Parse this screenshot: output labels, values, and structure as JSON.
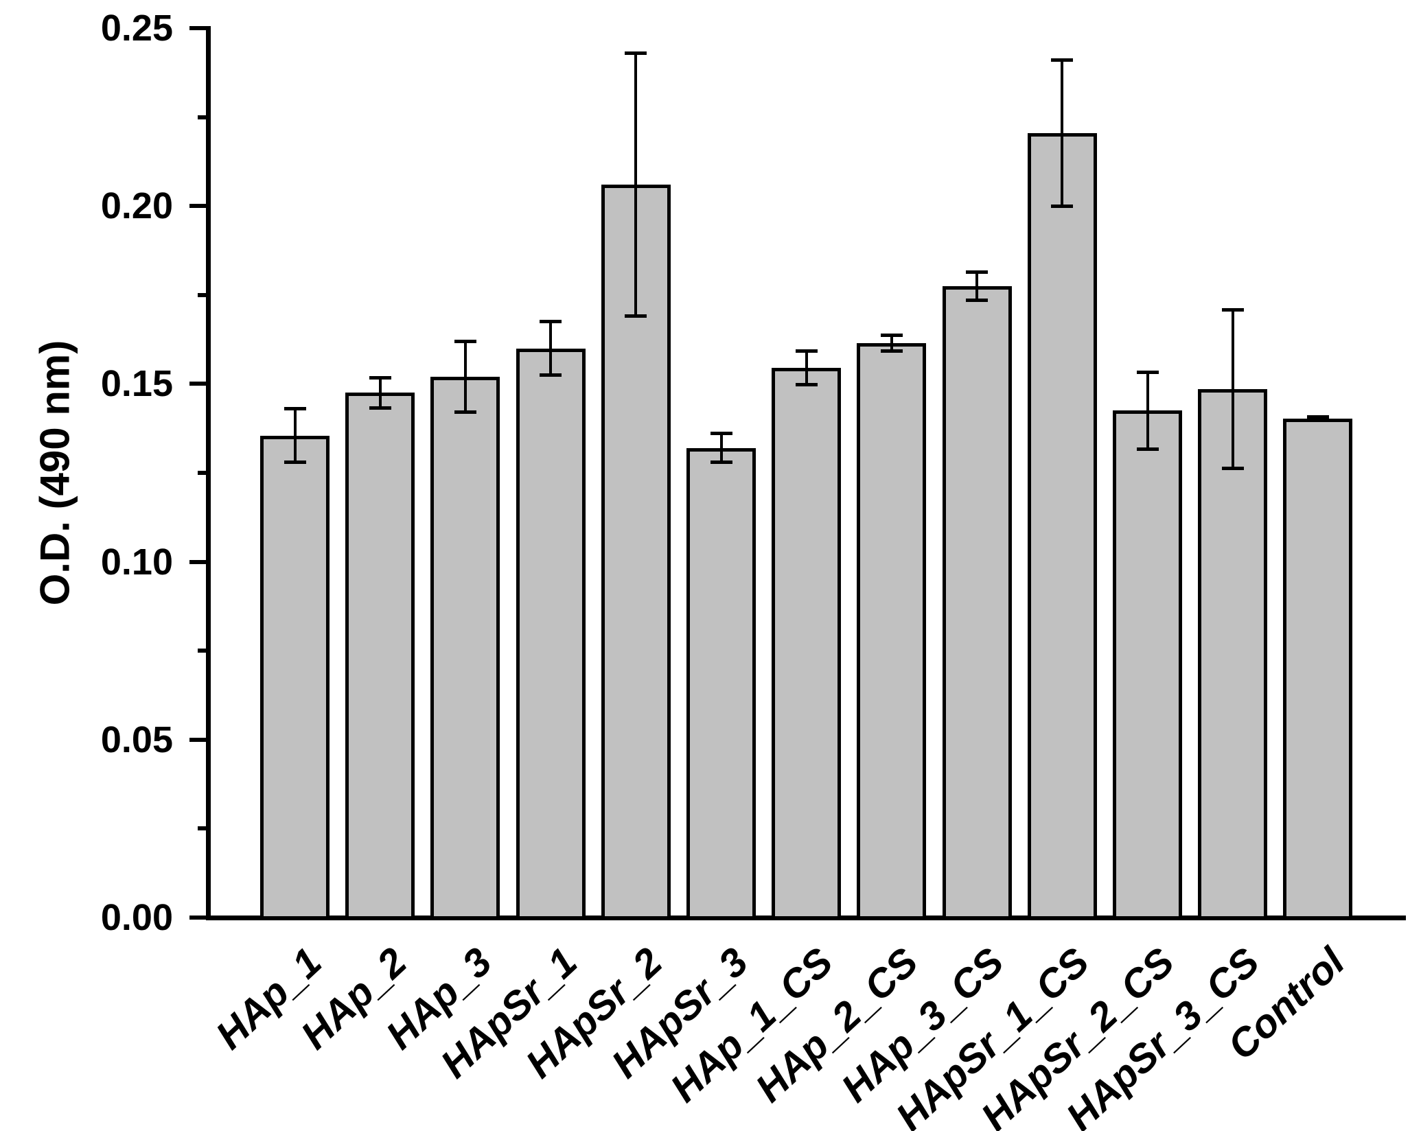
{
  "chart_data": {
    "type": "bar",
    "title": "",
    "ylabel": "O.D. (490 nm)",
    "xlabel": "",
    "categories": [
      "HAp_1",
      "HAp_2",
      "HAp_3",
      "HApSr_1",
      "HApSr_2",
      "HApSr_3",
      "HAp_1_CS",
      "HAp_2_CS",
      "HAp_3_CS",
      "HApSr_1_CS",
      "HApSr_2_CS",
      "HApSr_3_CS",
      "Control"
    ],
    "values": [
      0.1355,
      0.1475,
      0.152,
      0.16,
      0.206,
      0.132,
      0.1545,
      0.1615,
      0.1775,
      0.2205,
      0.1425,
      0.1485,
      0.1402
    ],
    "errors": [
      0.0075,
      0.0042,
      0.01,
      0.0075,
      0.037,
      0.004,
      0.0047,
      0.0022,
      0.004,
      0.0205,
      0.0108,
      0.0223,
      0.0005
    ],
    "ylim": [
      0.0,
      0.25
    ],
    "yticks": [
      {
        "v": 0.0,
        "label": "0.00"
      },
      {
        "v": 0.05,
        "label": "0.05"
      },
      {
        "v": 0.1,
        "label": "0.10"
      },
      {
        "v": 0.15,
        "label": "0.15"
      },
      {
        "v": 0.2,
        "label": "0.20"
      },
      {
        "v": 0.25,
        "label": "0.25"
      }
    ],
    "yticks_minor": [
      0.025,
      0.075,
      0.125,
      0.175,
      0.225
    ],
    "grid": false,
    "legend": false,
    "colors": {
      "bar_fill": "#c1c1c1",
      "bar_border": "#000000",
      "axis": "#000000",
      "error": "#000000",
      "text": "#000000",
      "background": "#ffffff"
    }
  }
}
